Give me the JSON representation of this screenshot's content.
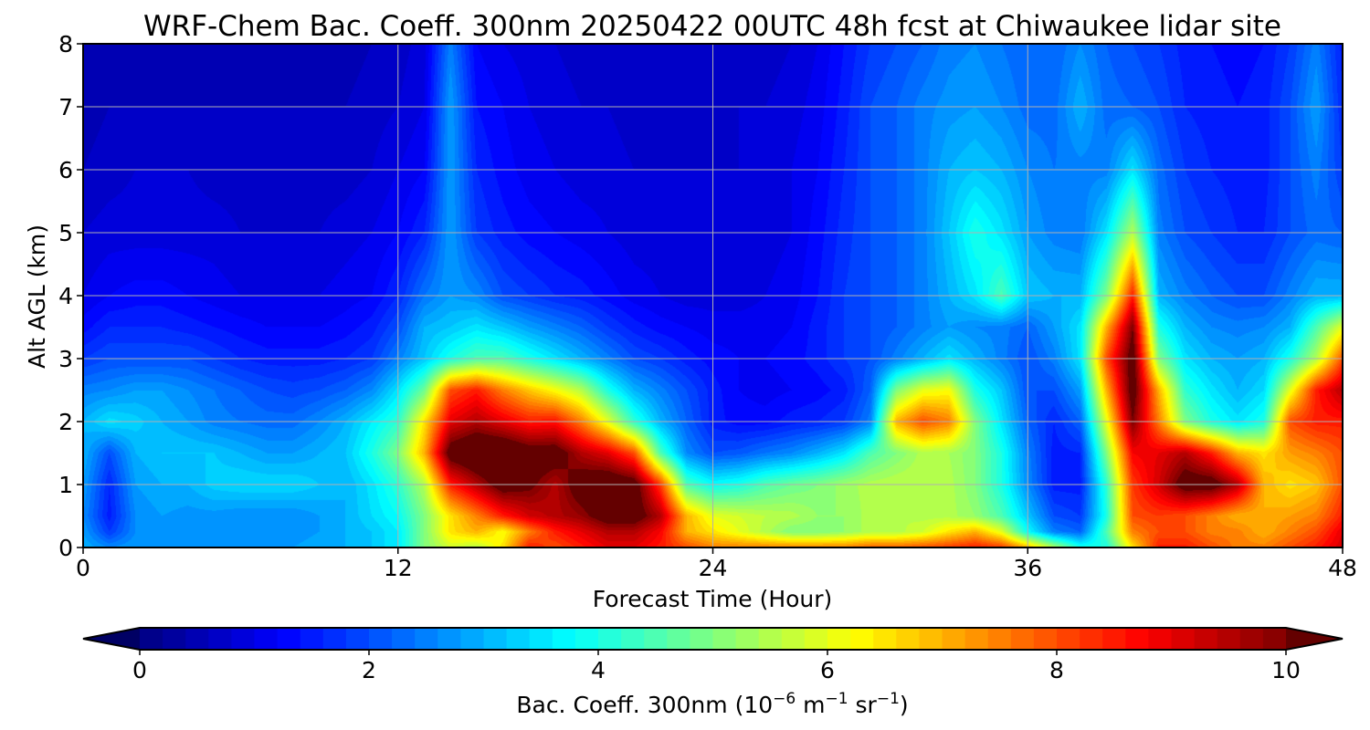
{
  "chart_data": {
    "type": "heatmap",
    "title": "WRF-Chem Bac. Coeff. 300nm  20250422 00UTC 48h fcst at Chiwaukee lidar site",
    "xlabel": "Forecast Time (Hour)",
    "ylabel": "Alt AGL (km)",
    "xlim": [
      0,
      48
    ],
    "ylim": [
      0,
      8
    ],
    "x_ticks": [
      "0",
      "12",
      "24",
      "36",
      "48"
    ],
    "y_ticks": [
      "0",
      "1",
      "2",
      "3",
      "4",
      "5",
      "6",
      "7",
      "8"
    ],
    "grid": true,
    "colormap": "jet",
    "colorbar": {
      "orientation": "horizontal",
      "placement": "bottom",
      "label_prefix": "Bac. Coeff. 300nm  (10",
      "label_exp1": "−6",
      "label_mid": " m",
      "label_exp2": "−1",
      "label_mid2": " sr",
      "label_exp3": "−1",
      "label_suffix": ")",
      "range": [
        0,
        10
      ],
      "extend": "both",
      "ticks": [
        "0",
        "2",
        "4",
        "6",
        "8",
        "10"
      ]
    },
    "x": [
      0,
      1,
      2,
      3,
      4,
      5,
      6,
      7,
      8,
      9,
      10,
      11,
      12,
      13,
      14,
      15,
      16,
      17,
      18,
      19,
      20,
      21,
      22,
      23,
      24,
      25,
      26,
      27,
      28,
      29,
      30,
      31,
      32,
      33,
      34,
      35,
      36,
      37,
      38,
      39,
      40,
      41,
      42,
      43,
      44,
      45,
      46,
      47,
      48
    ],
    "y": [
      0,
      0.25,
      0.5,
      1,
      1.5,
      2,
      2.5,
      3,
      3.5,
      4,
      5,
      6,
      7,
      8
    ],
    "z": [
      [
        3.0,
        2.6,
        2.8,
        2.8,
        2.8,
        2.8,
        2.8,
        2.8,
        2.8,
        3.0,
        3.0,
        3.2,
        3.6,
        5.0,
        5.8,
        5.5,
        6.5,
        8.5,
        8.0,
        8.5,
        9.0,
        9.0,
        8.5,
        8.0,
        7.5,
        7.5,
        7.5,
        7.5,
        7.5,
        7.5,
        7.8,
        7.8,
        8.0,
        8.2,
        8.5,
        8.2,
        7.0,
        5.5,
        4.0,
        4.0,
        6.5,
        8.5,
        8.5,
        8.0,
        7.5,
        7.5,
        8.0,
        8.5,
        9.2
      ],
      [
        2.8,
        1.8,
        2.6,
        2.6,
        2.6,
        2.6,
        2.6,
        2.6,
        2.6,
        2.8,
        3.0,
        3.2,
        3.6,
        5.0,
        6.5,
        7.0,
        6.2,
        7.5,
        8.5,
        9.0,
        9.5,
        9.5,
        8.8,
        7.0,
        6.5,
        6.0,
        5.5,
        5.0,
        5.0,
        5.2,
        5.5,
        5.5,
        5.8,
        6.5,
        7.0,
        6.0,
        3.8,
        2.5,
        2.2,
        4.5,
        7.5,
        8.0,
        8.0,
        7.5,
        7.5,
        7.0,
        7.5,
        8.0,
        9.0
      ],
      [
        2.6,
        1.5,
        2.6,
        2.8,
        2.7,
        2.7,
        2.6,
        2.6,
        2.6,
        2.8,
        3.0,
        3.4,
        3.8,
        5.0,
        6.5,
        7.5,
        8.5,
        9.2,
        9.5,
        9.8,
        10.5,
        10.5,
        9.5,
        7.0,
        6.0,
        5.8,
        5.6,
        5.5,
        5.2,
        5.2,
        5.5,
        5.6,
        5.5,
        5.5,
        5.2,
        4.5,
        3.2,
        2.0,
        1.8,
        4.0,
        8.0,
        8.2,
        8.0,
        7.5,
        7.0,
        7.0,
        7.2,
        7.5,
        8.5
      ],
      [
        2.8,
        1.6,
        2.8,
        3.0,
        3.0,
        3.3,
        3.4,
        3.4,
        3.4,
        3.2,
        3.0,
        3.5,
        4.2,
        5.5,
        8.5,
        9.5,
        10.5,
        10.2,
        9.5,
        10.5,
        10.8,
        10.5,
        8.2,
        4.5,
        3.8,
        4.0,
        4.5,
        4.8,
        5.0,
        5.3,
        5.5,
        5.6,
        5.6,
        5.5,
        5.0,
        4.0,
        2.6,
        1.5,
        1.5,
        4.2,
        8.2,
        9.2,
        10.5,
        10.5,
        9.5,
        7.0,
        6.5,
        6.8,
        8.0
      ],
      [
        3.0,
        2.0,
        3.0,
        3.2,
        3.2,
        3.2,
        3.0,
        2.8,
        2.8,
        3.0,
        3.2,
        4.0,
        5.0,
        7.0,
        10.5,
        11.0,
        11.0,
        10.5,
        10.5,
        9.5,
        9.0,
        8.0,
        4.5,
        2.6,
        2.0,
        2.1,
        2.4,
        2.6,
        3.0,
        3.5,
        4.5,
        5.0,
        5.5,
        5.4,
        5.0,
        4.0,
        2.5,
        1.5,
        1.6,
        5.0,
        8.8,
        9.0,
        9.5,
        8.5,
        7.0,
        6.5,
        7.2,
        7.5,
        8.0
      ],
      [
        3.0,
        3.5,
        3.3,
        3.0,
        2.8,
        2.5,
        2.4,
        2.3,
        2.3,
        2.6,
        3.0,
        3.6,
        4.2,
        6.5,
        9.0,
        9.5,
        9.0,
        8.5,
        8.6,
        7.5,
        6.0,
        4.2,
        3.0,
        2.2,
        1.5,
        1.3,
        1.3,
        1.5,
        1.6,
        1.8,
        2.5,
        7.0,
        8.0,
        7.5,
        5.0,
        3.5,
        2.2,
        1.6,
        2.2,
        6.0,
        10.0,
        7.5,
        5.0,
        4.0,
        3.5,
        4.0,
        8.0,
        8.5,
        8.5
      ],
      [
        2.5,
        2.6,
        2.8,
        2.8,
        2.6,
        2.4,
        2.2,
        2.0,
        1.9,
        2.0,
        2.2,
        2.6,
        3.5,
        4.8,
        8.0,
        8.5,
        7.5,
        6.8,
        6.2,
        5.5,
        4.0,
        3.0,
        2.5,
        2.0,
        1.5,
        1.2,
        1.1,
        1.2,
        1.3,
        1.5,
        2.2,
        5.0,
        6.0,
        6.2,
        4.0,
        3.2,
        2.0,
        2.0,
        2.8,
        7.0,
        10.5,
        7.0,
        4.2,
        3.5,
        3.0,
        3.4,
        6.0,
        8.5,
        9.5
      ],
      [
        1.8,
        2.0,
        2.0,
        2.0,
        2.0,
        1.8,
        1.6,
        1.5,
        1.5,
        1.5,
        1.6,
        1.8,
        2.5,
        3.2,
        4.0,
        4.5,
        4.5,
        4.0,
        3.5,
        3.0,
        2.5,
        2.0,
        1.8,
        1.5,
        1.3,
        1.2,
        1.2,
        1.3,
        1.5,
        1.8,
        2.0,
        2.5,
        3.0,
        3.5,
        3.0,
        2.5,
        2.0,
        2.5,
        3.5,
        8.0,
        10.5,
        5.0,
        3.5,
        3.0,
        2.8,
        3.0,
        4.0,
        5.5,
        8.0
      ],
      [
        1.3,
        1.6,
        1.6,
        1.6,
        1.5,
        1.4,
        1.3,
        1.2,
        1.2,
        1.2,
        1.3,
        1.5,
        2.0,
        3.0,
        3.2,
        3.5,
        3.2,
        2.8,
        2.5,
        2.2,
        1.8,
        1.5,
        1.3,
        1.2,
        1.1,
        1.1,
        1.1,
        1.2,
        1.5,
        1.8,
        2.0,
        2.2,
        2.5,
        2.8,
        2.6,
        2.5,
        2.2,
        2.8,
        3.5,
        7.0,
        10.0,
        4.0,
        3.0,
        2.6,
        2.5,
        2.6,
        3.0,
        4.5,
        6.0
      ],
      [
        1.0,
        1.2,
        1.3,
        1.3,
        1.2,
        1.1,
        1.0,
        1.0,
        1.0,
        1.0,
        1.1,
        1.2,
        1.6,
        2.4,
        2.8,
        2.6,
        2.0,
        1.8,
        1.6,
        1.5,
        1.3,
        1.1,
        1.0,
        0.9,
        0.9,
        0.9,
        1.0,
        1.1,
        1.4,
        1.8,
        2.0,
        2.2,
        2.5,
        3.0,
        3.5,
        4.5,
        3.2,
        3.0,
        3.0,
        5.0,
        8.5,
        3.0,
        2.5,
        2.2,
        2.0,
        2.0,
        2.5,
        3.0,
        3.0
      ],
      [
        0.8,
        0.9,
        0.9,
        0.9,
        0.9,
        0.9,
        0.8,
        0.8,
        0.8,
        0.8,
        0.9,
        1.0,
        1.2,
        1.6,
        2.8,
        1.8,
        1.5,
        1.3,
        1.2,
        1.1,
        1.0,
        0.9,
        0.9,
        0.8,
        0.8,
        0.8,
        0.9,
        1.0,
        1.3,
        1.7,
        2.0,
        2.2,
        2.5,
        3.2,
        4.0,
        3.5,
        2.8,
        2.5,
        2.4,
        3.5,
        5.5,
        2.5,
        2.0,
        1.8,
        1.6,
        1.6,
        2.0,
        2.3,
        2.2
      ],
      [
        0.6,
        0.7,
        0.8,
        0.8,
        0.8,
        0.7,
        0.7,
        0.7,
        0.7,
        0.7,
        0.7,
        0.8,
        1.0,
        1.2,
        2.8,
        1.6,
        1.3,
        1.1,
        1.0,
        0.9,
        0.9,
        0.8,
        0.8,
        0.8,
        0.8,
        0.8,
        0.9,
        1.0,
        1.2,
        1.6,
        2.0,
        2.2,
        2.5,
        3.0,
        3.2,
        3.0,
        2.6,
        2.4,
        2.5,
        2.5,
        3.5,
        2.3,
        1.8,
        1.6,
        1.5,
        1.5,
        2.0,
        2.5,
        1.8
      ],
      [
        0.5,
        0.6,
        0.6,
        0.6,
        0.6,
        0.6,
        0.6,
        0.6,
        0.6,
        0.6,
        0.6,
        0.7,
        0.8,
        1.0,
        2.8,
        1.4,
        1.2,
        1.0,
        0.9,
        0.8,
        0.8,
        0.7,
        0.7,
        0.7,
        0.7,
        0.8,
        0.8,
        0.9,
        1.1,
        1.5,
        2.0,
        2.2,
        2.5,
        2.7,
        2.8,
        2.6,
        2.3,
        2.3,
        3.0,
        2.3,
        2.2,
        2.0,
        1.6,
        1.5,
        1.4,
        1.5,
        2.0,
        2.8,
        1.6
      ],
      [
        0.4,
        0.5,
        0.5,
        0.5,
        0.5,
        0.5,
        0.5,
        0.5,
        0.5,
        0.5,
        0.5,
        0.6,
        0.7,
        0.9,
        2.5,
        1.2,
        1.0,
        0.9,
        0.8,
        0.7,
        0.7,
        0.6,
        0.6,
        0.6,
        0.6,
        0.7,
        0.7,
        0.8,
        1.0,
        1.4,
        1.8,
        2.0,
        2.2,
        2.5,
        2.6,
        2.4,
        2.2,
        2.2,
        2.6,
        2.2,
        2.0,
        1.8,
        1.5,
        1.4,
        1.3,
        1.4,
        1.8,
        2.5,
        1.5
      ]
    ]
  }
}
